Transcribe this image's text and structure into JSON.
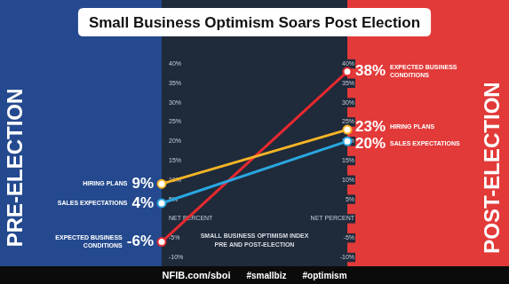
{
  "chart_data": {
    "type": "line",
    "title": "Small Business Optimism Soars Post Election",
    "annotations": [
      "SMALL BUSINESS OPTIMISM INDEX",
      "PRE AND POST-ELECTION"
    ],
    "footer": [
      "NFIB.com/sboi",
      "#smallbiz",
      "#optimism"
    ],
    "categories": [
      "PRE-ELECTION",
      "POST-ELECTION"
    ],
    "series": [
      {
        "name": "HIRING PLANS",
        "color": "#f6b426",
        "values": [
          9,
          23
        ],
        "value_labels": [
          "9%",
          "23%"
        ]
      },
      {
        "name": "SALES EXPECTATIONS",
        "color": "#2aa6e0",
        "values": [
          4,
          20
        ],
        "value_labels": [
          "4%",
          "20%"
        ]
      },
      {
        "name": "EXPECTED BUSINESS CONDITIONS",
        "color": "#e8292f",
        "values": [
          -6,
          38
        ],
        "value_labels": [
          "-6%",
          "38%"
        ]
      }
    ],
    "ylim": [
      -10,
      40
    ],
    "yticks": [
      {
        "value": -10,
        "label": "-10%"
      },
      {
        "value": -5,
        "label": "-5%"
      },
      {
        "value": 0,
        "label": "NET PERCENT"
      },
      {
        "value": 5,
        "label": "5%"
      },
      {
        "value": 10,
        "label": "10%"
      },
      {
        "value": 15,
        "label": "15%"
      },
      {
        "value": 20,
        "label": "20%"
      },
      {
        "value": 25,
        "label": "25%"
      },
      {
        "value": 30,
        "label": "30%"
      },
      {
        "value": 35,
        "label": "35%"
      },
      {
        "value": 40,
        "label": "40%"
      }
    ],
    "grid": false,
    "data_labels": true,
    "marker": "circle",
    "line_style": "solid"
  }
}
